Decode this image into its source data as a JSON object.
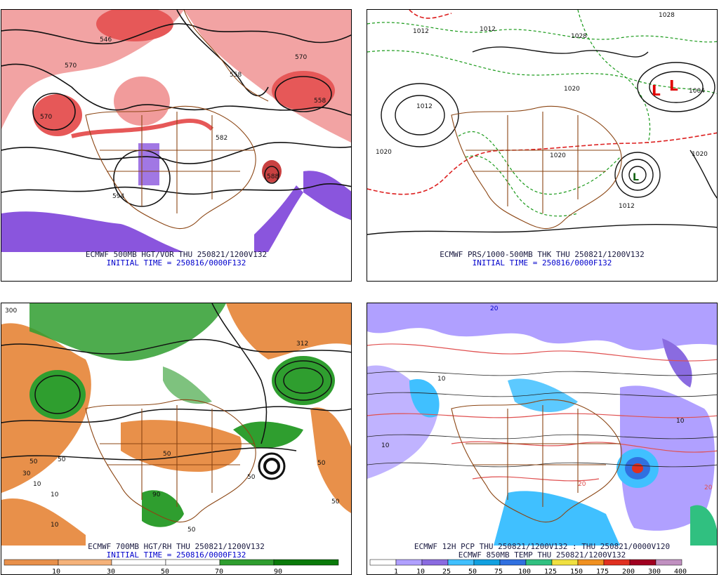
{
  "panels": {
    "tl": {
      "line1": "ECMWF 500MB HGT/VOR THU 250821/1200V132",
      "line2": "INITIAL TIME = 250816/0000F132",
      "labels": [
        "546",
        "570",
        "558",
        "570",
        "558",
        "582",
        "570",
        "594",
        "588"
      ]
    },
    "tr": {
      "line1": "ECMWF PRS/1000-500MB THK THU 250821/1200V132",
      "line2": "INITIAL TIME = 250816/0000F132",
      "labels": [
        "1012",
        "1012",
        "1020",
        "1020",
        "1028",
        "1012",
        "1020",
        "1004",
        "1012",
        "1020",
        "1028"
      ],
      "lows": [
        "L",
        "L",
        "L"
      ]
    },
    "bl": {
      "line1": "ECMWF 700MB HGT/RH THU 250821/1200V132",
      "line2": "INITIAL TIME = 250816/0000F132",
      "labels": [
        "300",
        "50",
        "50",
        "10",
        "30",
        "50",
        "10",
        "50",
        "312",
        "50",
        "90",
        "50",
        "50",
        "10"
      ],
      "colorbar_ticks": [
        "10",
        "30",
        "50",
        "70",
        "90"
      ]
    },
    "br": {
      "line1": "ECMWF 12H PCP THU 250821/1200V132 : THU 250821/0000V120",
      "line2": "ECMWF 850MB TEMP THU 250821/1200V132",
      "labels": [
        "20",
        "10",
        "20",
        "10",
        "20",
        "10"
      ],
      "colorbar_ticks": [
        "1",
        "10",
        "25",
        "50",
        "75",
        "100",
        "125",
        "150",
        "175",
        "200",
        "300",
        "400"
      ]
    }
  },
  "colors": {
    "rh_scale": [
      "#e8904a",
      "#f5b27a",
      "#ffffff",
      "#ffffff",
      "#7ec27e",
      "#2f9e2f",
      "#0a7a0a"
    ],
    "pcp_scale": [
      "#ffffff",
      "#b0a0ff",
      "#8a6be0",
      "#40c0ff",
      "#10a0e0",
      "#3070e0",
      "#30c080",
      "#f0e040",
      "#f09020",
      "#e03020",
      "#a00020",
      "#c090c0"
    ],
    "vorticity": "#e23b3b",
    "neg_vorticity": "#8a55dd",
    "map_lines": "#8b4513",
    "thickness_green": "#1a9a1a",
    "thickness_red": "#dd2020"
  }
}
